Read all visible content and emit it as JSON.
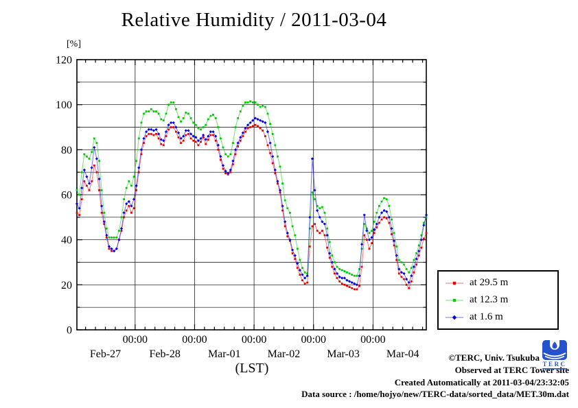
{
  "title": "Relative Humidity / 2011-03-04",
  "y_axis": {
    "unit": "[%]",
    "tick_values": [
      0,
      20,
      40,
      60,
      80,
      100,
      120
    ]
  },
  "x_axis": {
    "label": "(LST)",
    "time_tick_label": "00:00",
    "day_labels": [
      "Feb-27",
      "Feb-28",
      "Mar-01",
      "Mar-02",
      "Mar-03",
      "Mar-04"
    ],
    "day_label_hours": [
      12,
      36,
      60,
      84,
      108,
      132
    ]
  },
  "legend": {
    "items": [
      {
        "label": "at 29.5 m",
        "color": "#ee0000",
        "marker": "square"
      },
      {
        "label": "at 12.3 m",
        "color": "#00cc00",
        "marker": "square"
      },
      {
        "label": "at 1.6 m",
        "color": "#0000ee",
        "marker": "diamond"
      }
    ]
  },
  "footer": {
    "copyright": "©TERC, Univ. Tsukuba",
    "observed": "Observed at TERC Tower site",
    "created": "Created Automatically at 2011-03-04/23:32:05",
    "source": "Data source : /home/hojyo/new/TERC-data/sorted_data/MET.30m.dat",
    "logo_text": "TERC"
  },
  "chart_data": {
    "type": "line",
    "title": "Relative Humidity / 2011-03-04",
    "ylabel": "[%]",
    "xlabel": "(LST)",
    "ylim": [
      0,
      120
    ],
    "y_major_step": 20,
    "y_minor_step": 10,
    "grid": "horizontal lines every 10%, vertical lines at each 00:00",
    "legend_position": "outside right-bottom",
    "t_unit": "hours since Feb-27 00:00 (LST)",
    "t_min": 0.5,
    "t_max": 141.5,
    "t_step": 1,
    "x_major_ticks_hours": [
      24,
      48,
      72,
      96,
      120
    ],
    "x_minor_step_hours": 4,
    "series": [
      {
        "name": "at 29.5 m",
        "color": "#ee0000",
        "marker": "square",
        "values": [
          52,
          51,
          58,
          66,
          64,
          62,
          66,
          73,
          70,
          62,
          52,
          47,
          41,
          36,
          35,
          35,
          36,
          40,
          44,
          50,
          53,
          55,
          52,
          54,
          62,
          70,
          78,
          83,
          86,
          87,
          87,
          86.5,
          87,
          85,
          82.5,
          82,
          86,
          89,
          90,
          90,
          88,
          85.5,
          83,
          84,
          86.5,
          87,
          85,
          84,
          83.5,
          82,
          83.5,
          85.5,
          82.5,
          84.5,
          86.5,
          86.5,
          84,
          80,
          75.5,
          71.5,
          69.5,
          69,
          70,
          73.5,
          78,
          81.5,
          84,
          86,
          88,
          89.5,
          90,
          90.5,
          91,
          90.5,
          89.5,
          88.5,
          86,
          82,
          78.5,
          74,
          69.5,
          65,
          61,
          53,
          46,
          41.5,
          39.5,
          34,
          31.5,
          27.5,
          24.5,
          22,
          20.5,
          21,
          37,
          46,
          47,
          44,
          43,
          44,
          42,
          36.5,
          32,
          28,
          25,
          23,
          21.5,
          20.5,
          20,
          19.5,
          19,
          18.5,
          18,
          18,
          19.5,
          28,
          42,
          40,
          36,
          38.5,
          43,
          45.5,
          47.5,
          49,
          50,
          49.5,
          47.5,
          42.5,
          37.5,
          31,
          25,
          23.5,
          22.5,
          20,
          18.5,
          21.5,
          25.5,
          29,
          33,
          36.5,
          40.5,
          43
        ]
      },
      {
        "name": "at 12.3 m",
        "color": "#00cc00",
        "marker": "square",
        "values": [
          62,
          60,
          70,
          78,
          77,
          76,
          79,
          85,
          83,
          75,
          62,
          52,
          45,
          41,
          41,
          41,
          41,
          44,
          50,
          58,
          63,
          66,
          64,
          68,
          75,
          85,
          92,
          96,
          97,
          97,
          98,
          97,
          97,
          96,
          93.5,
          93,
          96,
          100,
          101,
          101,
          98,
          94.5,
          92.5,
          94,
          96.5,
          96,
          94,
          92,
          91,
          89.5,
          89,
          90,
          91,
          93.5,
          95,
          95.5,
          94,
          90,
          85,
          81,
          78,
          77,
          78,
          83,
          90,
          94,
          97,
          99.5,
          101,
          101,
          101.5,
          101,
          101,
          100,
          99,
          99.5,
          99,
          96,
          91.5,
          87,
          82,
          77,
          72.5,
          65,
          57.5,
          54,
          52,
          46,
          42,
          36,
          31,
          27.5,
          25.5,
          25,
          45,
          61,
          58,
          55,
          54,
          54.5,
          52,
          45,
          39,
          33,
          30,
          28,
          27,
          26.5,
          26,
          25.5,
          25,
          24.5,
          24,
          24,
          27,
          36,
          47,
          45,
          43,
          44,
          48,
          52,
          55,
          57,
          58.5,
          58,
          55,
          49,
          43,
          37,
          31,
          30,
          29,
          27,
          25.5,
          27.5,
          31,
          34,
          37.5,
          42,
          47.5,
          50
        ]
      },
      {
        "name": "at 1.6 m",
        "color": "#0000ee",
        "marker": "diamond",
        "values": [
          56,
          54,
          63,
          71,
          68,
          65,
          72,
          81,
          76,
          67,
          55,
          48,
          42,
          37,
          36,
          35,
          36,
          40,
          45,
          52,
          56,
          57,
          55,
          58,
          64,
          72,
          80,
          85,
          88,
          89,
          89,
          88.5,
          89,
          87,
          84.5,
          84,
          88,
          91,
          92,
          92,
          90,
          87.5,
          85,
          86,
          88.5,
          88.5,
          87,
          86,
          85.5,
          84,
          85,
          86.5,
          84.5,
          86,
          88,
          88,
          86,
          82,
          77,
          73,
          70.5,
          69.5,
          71,
          75,
          80,
          83,
          85.5,
          87.5,
          89.5,
          91,
          92,
          93,
          94,
          93.5,
          93,
          92.5,
          92,
          88,
          83,
          77,
          71,
          66,
          62,
          55,
          48,
          43,
          40,
          35.5,
          33,
          29.5,
          26.5,
          24.5,
          23,
          24,
          50,
          76,
          62,
          53,
          50,
          48,
          47,
          42,
          34,
          30,
          27,
          25,
          23.5,
          23,
          23,
          22,
          21.5,
          21,
          20.5,
          20,
          24,
          38,
          51,
          44,
          40,
          41,
          44.5,
          47,
          50,
          52,
          53,
          52.5,
          50,
          45,
          39.5,
          33,
          27,
          25.5,
          25,
          22.5,
          21,
          24,
          28,
          31.5,
          35,
          40,
          46.5,
          51
        ]
      }
    ]
  }
}
